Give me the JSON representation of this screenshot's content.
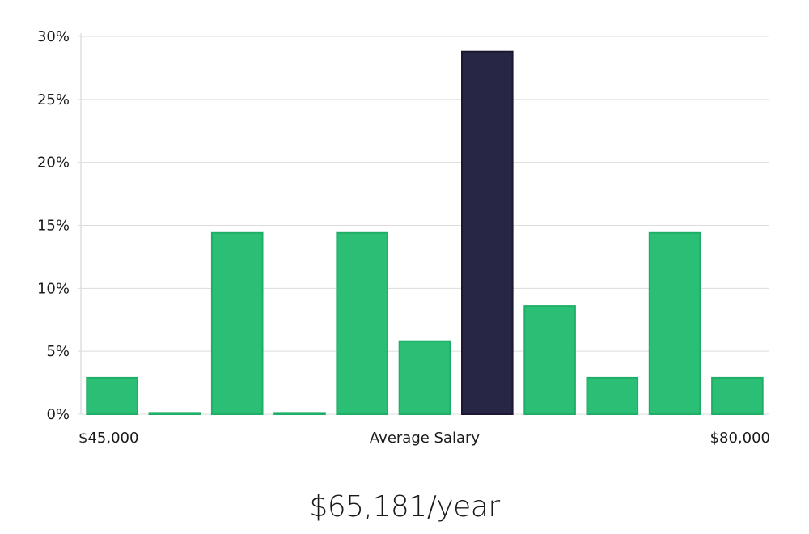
{
  "chart_data": {
    "type": "bar",
    "title": "",
    "xlabel": "",
    "ylabel": "",
    "x_labels": {
      "left": "$45,000",
      "center": "Average Salary",
      "right": "$80,000"
    },
    "categories": [
      "1",
      "2",
      "3",
      "4",
      "5",
      "6",
      "7",
      "8",
      "9",
      "10",
      "11"
    ],
    "values": [
      2.9,
      0.1,
      14.4,
      0.1,
      14.4,
      5.8,
      28.8,
      8.6,
      2.9,
      14.4,
      2.9
    ],
    "highlight_index": 6,
    "ylim": [
      0,
      30
    ],
    "y_ticks": [
      {
        "value": 0,
        "label": "0%"
      },
      {
        "value": 5,
        "label": "5%"
      },
      {
        "value": 10,
        "label": "10%"
      },
      {
        "value": 15,
        "label": "15%"
      },
      {
        "value": 20,
        "label": "20%"
      },
      {
        "value": 25,
        "label": "25%"
      },
      {
        "value": 30,
        "label": "30%"
      }
    ],
    "grid": true,
    "legend": "none",
    "colors": {
      "bar": "#2bbf76",
      "bar_stroke": "#1fae66",
      "highlight": "#282645",
      "highlight_stroke": "#1a1833"
    }
  },
  "summary": {
    "salary_text": "$65,181/year"
  }
}
